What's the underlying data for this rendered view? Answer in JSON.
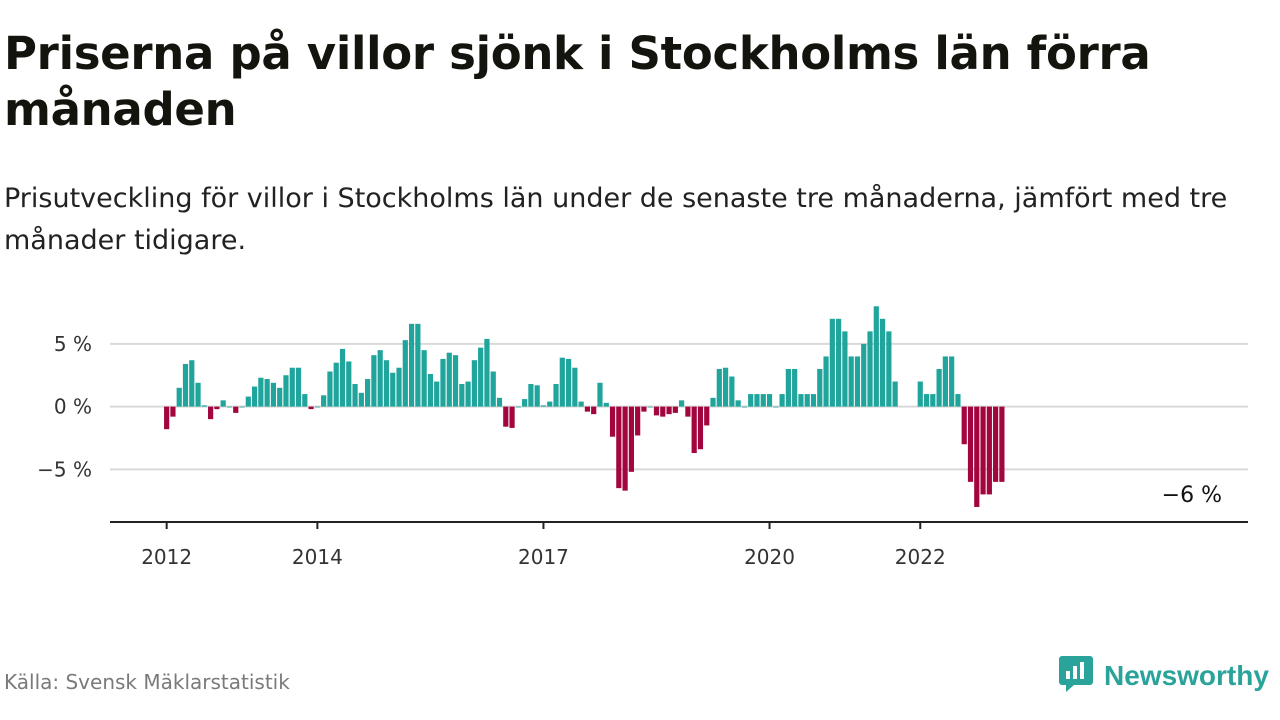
{
  "header": {
    "title": "Priserna på villor sjönk i Stockholms län förra månaden",
    "subtitle": "Prisutveckling för villor i Stockholms län under de senaste tre månaderna, jämfört med tre månader tidigare."
  },
  "footer": {
    "source": "Källa: Svensk Mäklarstatistik",
    "brand": "Newsworthy"
  },
  "colors": {
    "positive": "#1fa59c",
    "negative": "#a3063f",
    "brand": "#2aa39a",
    "grid": "#d9d9d9",
    "axis": "#222222"
  },
  "chart_data": {
    "type": "bar",
    "title": "Priserna på villor sjönk i Stockholms län förra månaden",
    "subtitle": "Prisutveckling för villor i Stockholms län under de senaste tre månaderna, jämfört med tre månader tidigare.",
    "xlabel": "",
    "ylabel": "",
    "ylim": [
      -9.2,
      8.5
    ],
    "y_ticks": [
      {
        "value": 5,
        "label": "5 %"
      },
      {
        "value": 0,
        "label": "0 %"
      },
      {
        "value": -5,
        "label": "−5 %"
      }
    ],
    "x_ticks": [
      {
        "index": 2,
        "label": "2012"
      },
      {
        "index": 26,
        "label": "2014"
      },
      {
        "index": 62,
        "label": "2017"
      },
      {
        "index": 98,
        "label": "2020"
      },
      {
        "index": 122,
        "label": "2022"
      }
    ],
    "grid": true,
    "start": "2011-11",
    "frequency": "monthly",
    "end_label": "−6 %",
    "values": [
      null,
      null,
      -1.8,
      -0.8,
      1.5,
      3.4,
      3.7,
      1.9,
      0.1,
      -1.0,
      -0.2,
      0.5,
      0.0,
      -0.5,
      0.0,
      0.8,
      1.6,
      2.3,
      2.2,
      1.9,
      1.5,
      2.5,
      3.1,
      3.1,
      1.0,
      -0.2,
      0.0,
      0.9,
      2.8,
      3.5,
      4.6,
      3.6,
      1.8,
      1.1,
      2.2,
      4.1,
      4.5,
      3.7,
      2.7,
      3.1,
      5.3,
      6.6,
      6.6,
      4.5,
      2.6,
      2.0,
      3.8,
      4.3,
      4.1,
      1.8,
      2.0,
      3.7,
      4.7,
      5.4,
      2.8,
      0.7,
      -1.6,
      -1.7,
      0.0,
      0.6,
      1.8,
      1.7,
      0.1,
      0.4,
      1.8,
      3.9,
      3.8,
      3.1,
      0.4,
      -0.4,
      -0.6,
      1.9,
      0.3,
      -2.4,
      -6.5,
      -6.7,
      -5.2,
      -2.3,
      -0.4,
      0.0,
      -0.7,
      -0.8,
      -0.6,
      -0.5,
      0.5,
      -0.8,
      -3.7,
      -3.4,
      -1.5,
      0.7,
      3.0,
      3.1,
      2.4,
      0.5,
      0.0,
      1.0,
      1.0,
      1.0,
      1.0,
      0.0,
      1.0,
      3.0,
      3.0,
      1.0,
      1.0,
      1.0,
      3.0,
      4.0,
      7.0,
      7.0,
      6.0,
      4.0,
      4.0,
      5.0,
      6.0,
      8.0,
      7.0,
      6.0,
      2.0,
      null,
      null,
      null,
      2.0,
      1.0,
      1.0,
      3.0,
      4.0,
      4.0,
      1.0,
      -3.0,
      -6.0,
      -8.0,
      -7.0,
      -7.0,
      -6.0,
      -6.0
    ]
  }
}
